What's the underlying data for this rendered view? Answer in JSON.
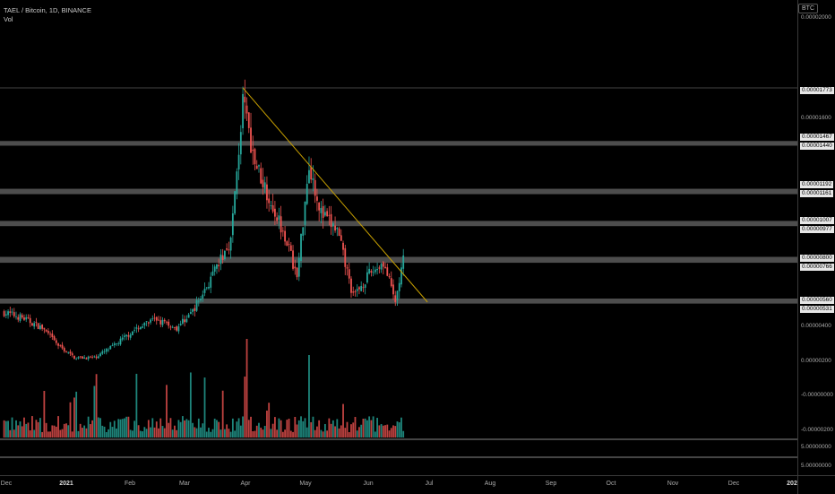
{
  "header": {
    "symbol_line": "TAEL / Bitcoin, 1D, BINANCE",
    "volume_label": "Vol",
    "currency": "BTC"
  },
  "colors": {
    "up": "#26a69a",
    "down": "#ef5350",
    "zone": "#5a5a5a",
    "trendline": "#c8a000"
  },
  "price_axis": {
    "labels": [
      {
        "text": "0.00002000",
        "value": 2e-05
      },
      {
        "text": "0.00001773",
        "value": 1.773e-05,
        "boxed": true
      },
      {
        "text": "0.00001600",
        "value": 1.6e-05
      },
      {
        "text": "0.00001467",
        "value": 1.467e-05,
        "boxed": true
      },
      {
        "text": "0.00001440",
        "value": 1.44e-05,
        "boxed": true
      },
      {
        "text": "0.00001192",
        "value": 1.192e-05,
        "boxed": true
      },
      {
        "text": "0.00001161",
        "value": 1.161e-05,
        "boxed": true
      },
      {
        "text": "0.00001007",
        "value": 1.007e-05,
        "boxed": true
      },
      {
        "text": "0.00000977",
        "value": 9.77e-06,
        "boxed": true
      },
      {
        "text": "0.00000800",
        "value": 8e-06,
        "boxed": true
      },
      {
        "text": "0.00000766",
        "value": 7.66e-06,
        "boxed": true
      },
      {
        "text": "0.00000560",
        "value": 5.6e-06,
        "boxed": true
      },
      {
        "text": "0.00000531",
        "value": 5.31e-06,
        "boxed": true
      },
      {
        "text": "0.00000400",
        "value": 4e-06
      },
      {
        "text": "0.00000200",
        "value": 2e-06
      },
      {
        "text": "-0.00000000",
        "value": 0
      },
      {
        "text": "-0.00000200",
        "value": -2e-06
      }
    ],
    "volume_labels": [
      "5.00000000",
      "5.00000000"
    ]
  },
  "time_axis": {
    "labels": [
      {
        "text": "Dec",
        "bold": false
      },
      {
        "text": "2021",
        "bold": true
      },
      {
        "text": "Feb",
        "bold": false
      },
      {
        "text": "Mar",
        "bold": false
      },
      {
        "text": "Apr",
        "bold": false
      },
      {
        "text": "May",
        "bold": false
      },
      {
        "text": "Jun",
        "bold": false
      },
      {
        "text": "Jul",
        "bold": false
      },
      {
        "text": "Aug",
        "bold": false
      },
      {
        "text": "Sep",
        "bold": false
      },
      {
        "text": "Oct",
        "bold": false
      },
      {
        "text": "Nov",
        "bold": false
      },
      {
        "text": "Dec",
        "bold": false
      },
      {
        "text": "202",
        "bold": true
      }
    ]
  },
  "chart_data": {
    "type": "candlestick",
    "interval": "1D",
    "unit": "BTC",
    "zones": [
      {
        "low": 1.44e-05,
        "high": 1.467e-05
      },
      {
        "low": 1.161e-05,
        "high": 1.192e-05
      },
      {
        "low": 9.77e-06,
        "high": 1.007e-05
      },
      {
        "low": 7.66e-06,
        "high": 8e-06
      },
      {
        "low": 5.31e-06,
        "high": 5.6e-06
      }
    ],
    "reference_line": 1.773e-05,
    "trendline": {
      "from": {
        "date": "2021-03-30",
        "price": 1.773e-05
      },
      "to": {
        "date": "2021-06-30",
        "price": 5.4e-06
      }
    },
    "close_series": [
      {
        "date": "2020-12-01",
        "close": 4.8e-06
      },
      {
        "date": "2020-12-10",
        "close": 4.5e-06
      },
      {
        "date": "2020-12-20",
        "close": 3.9e-06
      },
      {
        "date": "2020-12-28",
        "close": 2.9e-06
      },
      {
        "date": "2021-01-05",
        "close": 2.2e-06
      },
      {
        "date": "2021-01-15",
        "close": 2.2e-06
      },
      {
        "date": "2021-01-25",
        "close": 2.9e-06
      },
      {
        "date": "2021-02-05",
        "close": 3.9e-06
      },
      {
        "date": "2021-02-15",
        "close": 4.4e-06
      },
      {
        "date": "2021-02-25",
        "close": 3.9e-06
      },
      {
        "date": "2021-03-05",
        "close": 4.9e-06
      },
      {
        "date": "2021-03-15",
        "close": 6.9e-06
      },
      {
        "date": "2021-03-24",
        "close": 9e-06
      },
      {
        "date": "2021-03-30",
        "close": 1.68e-05
      },
      {
        "date": "2021-04-05",
        "close": 1.35e-05
      },
      {
        "date": "2021-04-12",
        "close": 1.15e-05
      },
      {
        "date": "2021-04-20",
        "close": 9.3e-06
      },
      {
        "date": "2021-04-26",
        "close": 6.8e-06
      },
      {
        "date": "2021-05-02",
        "close": 1.35e-05
      },
      {
        "date": "2021-05-08",
        "close": 1.05e-05
      },
      {
        "date": "2021-05-16",
        "close": 9.5e-06
      },
      {
        "date": "2021-05-24",
        "close": 5.7e-06
      },
      {
        "date": "2021-06-01",
        "close": 7e-06
      },
      {
        "date": "2021-06-08",
        "close": 7.7e-06
      },
      {
        "date": "2021-06-14",
        "close": 5.4e-06
      },
      {
        "date": "2021-06-18",
        "close": 7.8e-06
      }
    ]
  }
}
